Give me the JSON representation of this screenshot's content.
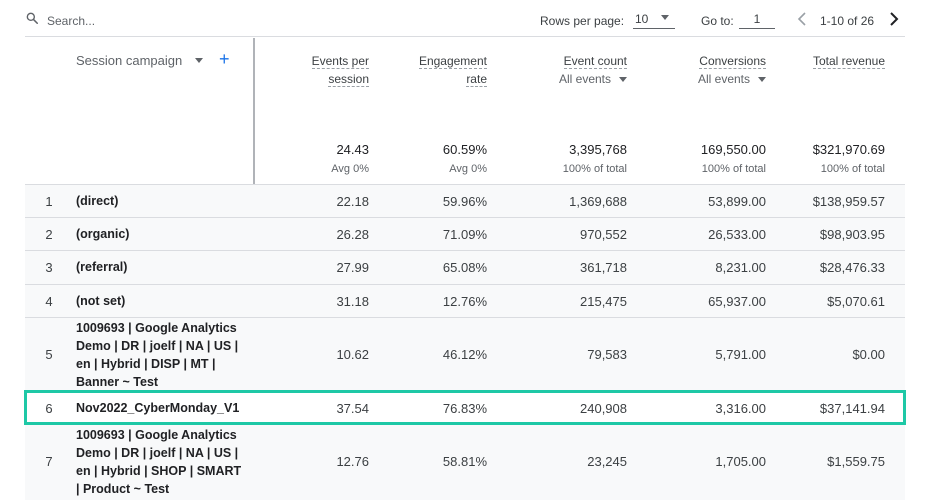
{
  "toolbar": {
    "search_placeholder": "Search...",
    "rows_per_page_label": "Rows per page:",
    "rows_per_page_value": "10",
    "goto_label": "Go to:",
    "goto_value": "1",
    "range_label": "1-10 of 26"
  },
  "header": {
    "dimension_label": "Session campaign",
    "add_dimension_glyph": "+",
    "metrics": [
      {
        "title_line1": "Events per",
        "title_line2": "session",
        "sub": ""
      },
      {
        "title_line1": "Engagement",
        "title_line2": "rate",
        "sub": ""
      },
      {
        "title_line1": "Event count",
        "title_line2": "",
        "sub": "All events"
      },
      {
        "title_line1": "Conversions",
        "title_line2": "",
        "sub": "All events"
      },
      {
        "title_line1": "Total revenue",
        "title_line2": "",
        "sub": ""
      }
    ],
    "totals": [
      {
        "value": "24.43",
        "sub": "Avg 0%"
      },
      {
        "value": "60.59%",
        "sub": "Avg 0%"
      },
      {
        "value": "3,395,768",
        "sub": "100% of total"
      },
      {
        "value": "169,550.00",
        "sub": "100% of total"
      },
      {
        "value": "$321,970.69",
        "sub": "100% of total"
      }
    ]
  },
  "rows": [
    {
      "idx": "1",
      "name": "(direct)",
      "c1": "22.18",
      "c2": "59.96%",
      "c3": "1,369,688",
      "c4": "53,899.00",
      "c5": "$138,959.57"
    },
    {
      "idx": "2",
      "name": "(organic)",
      "c1": "26.28",
      "c2": "71.09%",
      "c3": "970,552",
      "c4": "26,533.00",
      "c5": "$98,903.95"
    },
    {
      "idx": "3",
      "name": "(referral)",
      "c1": "27.99",
      "c2": "65.08%",
      "c3": "361,718",
      "c4": "8,231.00",
      "c5": "$28,476.33"
    },
    {
      "idx": "4",
      "name": "(not set)",
      "c1": "31.18",
      "c2": "12.76%",
      "c3": "215,475",
      "c4": "65,937.00",
      "c5": "$5,070.61"
    },
    {
      "idx": "5",
      "name": "1009693 | Google Analytics Demo | DR | joelf | NA | US | en | Hybrid | DISP | MT | Banner ~ Test",
      "c1": "10.62",
      "c2": "46.12%",
      "c3": "79,583",
      "c4": "5,791.00",
      "c5": "$0.00"
    },
    {
      "idx": "6",
      "name": "Nov2022_CyberMonday_V1",
      "c1": "37.54",
      "c2": "76.83%",
      "c3": "240,908",
      "c4": "3,316.00",
      "c5": "$37,141.94"
    },
    {
      "idx": "7",
      "name": "1009693 | Google Analytics Demo | DR | joelf | NA | US | en | Hybrid | SHOP | SMART | Product ~ Test",
      "c1": "12.76",
      "c2": "58.81%",
      "c3": "23,245",
      "c4": "1,705.00",
      "c5": "$1,559.75"
    }
  ],
  "colors": {
    "accent": "#1a73e8",
    "highlight": "#1ec8a6",
    "row_alt": "#f8f9fa",
    "divider": "#dadce0"
  },
  "icons": [
    "search-icon",
    "chevron-left-icon",
    "chevron-right-icon",
    "plus-icon",
    "caret-down-icon"
  ]
}
